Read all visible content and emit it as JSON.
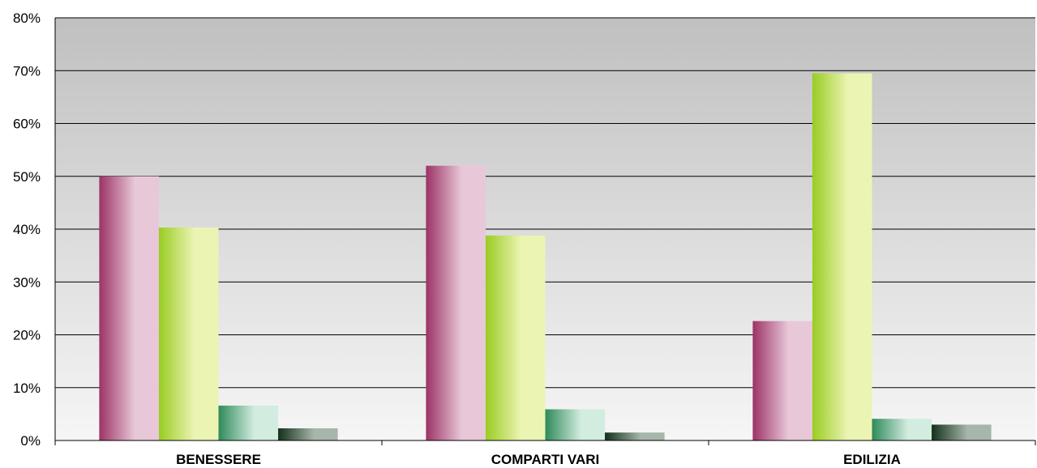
{
  "chart_data": {
    "type": "bar",
    "categories": [
      "BENESSERE",
      "COMPARTI VARI",
      "EDILIZIA"
    ],
    "series": [
      {
        "values": [
          50,
          52,
          22.6
        ],
        "color_dark": "#9c3366",
        "color_light": "#e8c8d8"
      },
      {
        "values": [
          40.3,
          38.8,
          69.5
        ],
        "color_dark": "#99cc22",
        "color_light": "#ecf4b4"
      },
      {
        "values": [
          6.6,
          5.9,
          4.1
        ],
        "color_dark": "#2f8a5a",
        "color_light": "#d2ece0"
      },
      {
        "values": [
          2.3,
          1.5,
          3.0
        ],
        "color_dark": "#14301c",
        "color_light": "#a6b6aa"
      }
    ],
    "y_ticks": [
      "0%",
      "10%",
      "20%",
      "30%",
      "40%",
      "50%",
      "60%",
      "70%",
      "80%"
    ],
    "ylim": [
      0,
      80
    ],
    "grid": true,
    "legend": "none",
    "colors": {
      "plot_top": "#c0c0c0",
      "plot_bottom": "#f6f6f6"
    }
  }
}
